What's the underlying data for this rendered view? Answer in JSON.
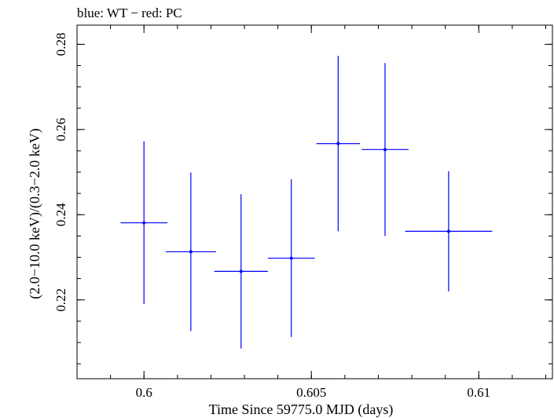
{
  "chart_data": {
    "type": "scatter",
    "title": "blue: WT − red: PC",
    "xlabel": "Time Since 59775.0 MJD (days)",
    "ylabel": "(2.0−10.0 keV)/(0.3−2.0 keV)",
    "xlim": [
      0.598,
      0.6122
    ],
    "ylim": [
      0.2015,
      0.2845
    ],
    "xticks_major": [
      0.6,
      0.605,
      0.61
    ],
    "xtick_labels": [
      "0.6",
      "0.605",
      "0.61"
    ],
    "yticks_major": [
      0.22,
      0.24,
      0.26,
      0.28
    ],
    "ytick_labels": [
      "0.22",
      "0.24",
      "0.26",
      "0.28"
    ],
    "xticks_minor_step": 0.001,
    "yticks_minor_step": 0.005,
    "grid": false,
    "series": [
      {
        "color": "#0000ff",
        "points": [
          {
            "x": 0.6,
            "xerr": 0.0007,
            "y": 0.2381,
            "yerr": 0.0191
          },
          {
            "x": 0.6014,
            "xerr": 0.00075,
            "y": 0.2313,
            "yerr": 0.0186
          },
          {
            "x": 0.6029,
            "xerr": 0.0008,
            "y": 0.2267,
            "yerr": 0.0181
          },
          {
            "x": 0.6044,
            "xerr": 0.0007,
            "y": 0.2298,
            "yerr": 0.0185
          },
          {
            "x": 0.6058,
            "xerr": 0.00065,
            "y": 0.2567,
            "yerr": 0.0206
          },
          {
            "x": 0.6072,
            "xerr": 0.0007,
            "y": 0.2553,
            "yerr": 0.0203
          },
          {
            "x": 0.6091,
            "xerr": 0.0013,
            "y": 0.2361,
            "yerr": 0.0141
          }
        ]
      }
    ]
  }
}
